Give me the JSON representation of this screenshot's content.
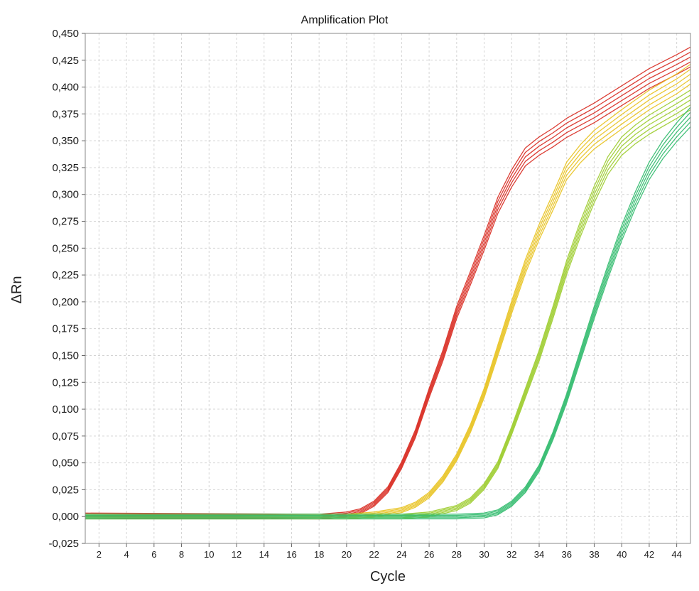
{
  "chart_data": {
    "type": "line",
    "title": "Amplification Plot",
    "xlabel": "Cycle",
    "ylabel": "ΔRn",
    "xlim": [
      1,
      45
    ],
    "ylim": [
      -0.025,
      0.45
    ],
    "grid": true,
    "x_ticks": [
      2,
      4,
      6,
      8,
      10,
      12,
      14,
      16,
      18,
      20,
      22,
      24,
      26,
      28,
      30,
      32,
      34,
      36,
      38,
      40,
      42,
      44
    ],
    "y_ticks": [
      -0.025,
      0.0,
      0.025,
      0.05,
      0.075,
      0.1,
      0.125,
      0.15,
      0.175,
      0.2,
      0.225,
      0.25,
      0.275,
      0.3,
      0.325,
      0.35,
      0.375,
      0.4,
      0.425,
      0.45
    ],
    "y_tick_labels": [
      "-0,025",
      "0,000",
      "0,025",
      "0,050",
      "0,075",
      "0,100",
      "0,125",
      "0,150",
      "0,175",
      "0,200",
      "0,225",
      "0,250",
      "0,275",
      "0,300",
      "0,325",
      "0,350",
      "0,375",
      "0,400",
      "0,425",
      "0,450"
    ],
    "series": [
      {
        "color": "#d8291f",
        "replicates": 5,
        "x": [
          1,
          18,
          20,
          21,
          22,
          23,
          24,
          25,
          26,
          27,
          28,
          29,
          30,
          31,
          32,
          33,
          34,
          35,
          36,
          38,
          40,
          42,
          44,
          45
        ],
        "y": [
          0.001,
          0.0,
          0.002,
          0.005,
          0.012,
          0.025,
          0.048,
          0.077,
          0.115,
          0.15,
          0.19,
          0.222,
          0.255,
          0.29,
          0.315,
          0.335,
          0.345,
          0.353,
          0.362,
          0.376,
          0.392,
          0.408,
          0.421,
          0.428
        ]
      },
      {
        "color": "#e8c21e",
        "replicates": 5,
        "x": [
          1,
          20,
          22,
          24,
          25,
          26,
          27,
          28,
          29,
          30,
          31,
          32,
          33,
          34,
          35,
          36,
          37,
          38,
          40,
          42,
          44,
          45
        ],
        "y": [
          0.0,
          0.0,
          0.002,
          0.006,
          0.011,
          0.02,
          0.035,
          0.055,
          0.082,
          0.115,
          0.155,
          0.195,
          0.233,
          0.265,
          0.293,
          0.322,
          0.338,
          0.351,
          0.37,
          0.388,
          0.403,
          0.412
        ]
      },
      {
        "color": "#9ccc2c",
        "replicates": 5,
        "x": [
          1,
          24,
          26,
          28,
          29,
          30,
          31,
          32,
          33,
          34,
          35,
          36,
          37,
          38,
          39,
          40,
          41,
          42,
          44,
          45
        ],
        "y": [
          0.0,
          0.0,
          0.002,
          0.008,
          0.015,
          0.028,
          0.048,
          0.08,
          0.115,
          0.15,
          0.19,
          0.232,
          0.268,
          0.3,
          0.327,
          0.345,
          0.356,
          0.365,
          0.38,
          0.388
        ]
      },
      {
        "color": "#2fba6c",
        "replicates": 5,
        "x": [
          1,
          28,
          30,
          31,
          32,
          33,
          34,
          35,
          36,
          37,
          38,
          39,
          40,
          41,
          42,
          43,
          44,
          45
        ],
        "y": [
          0.0,
          0.0,
          0.001,
          0.004,
          0.012,
          0.025,
          0.045,
          0.075,
          0.11,
          0.15,
          0.19,
          0.228,
          0.264,
          0.295,
          0.322,
          0.342,
          0.358,
          0.372
        ]
      }
    ]
  }
}
